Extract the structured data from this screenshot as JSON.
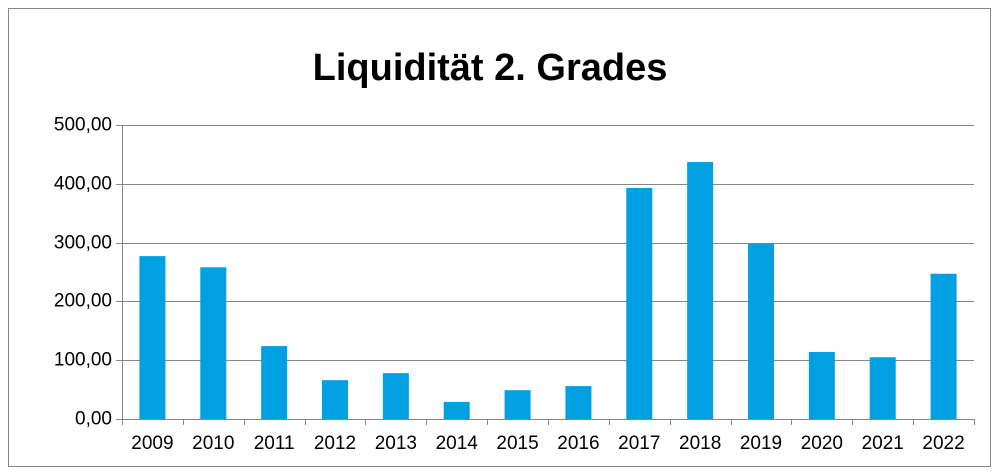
{
  "chart_data": {
    "type": "bar",
    "title": "Liquidität 2. Grades",
    "categories": [
      "2009",
      "2010",
      "2011",
      "2012",
      "2013",
      "2014",
      "2015",
      "2016",
      "2017",
      "2018",
      "2019",
      "2020",
      "2021",
      "2022"
    ],
    "values": [
      277,
      258,
      124,
      66,
      78,
      29,
      49,
      56,
      393,
      437,
      298,
      114,
      105,
      247
    ],
    "color": "#00a0e3",
    "ylim": [
      0,
      500
    ],
    "yticks": [
      {
        "value": 0,
        "label": "0,00"
      },
      {
        "value": 100,
        "label": "100,00"
      },
      {
        "value": 200,
        "label": "200,00"
      },
      {
        "value": 300,
        "label": "300,00"
      },
      {
        "value": 400,
        "label": "400,00"
      },
      {
        "value": 500,
        "label": "500,00"
      }
    ],
    "grid": true
  }
}
